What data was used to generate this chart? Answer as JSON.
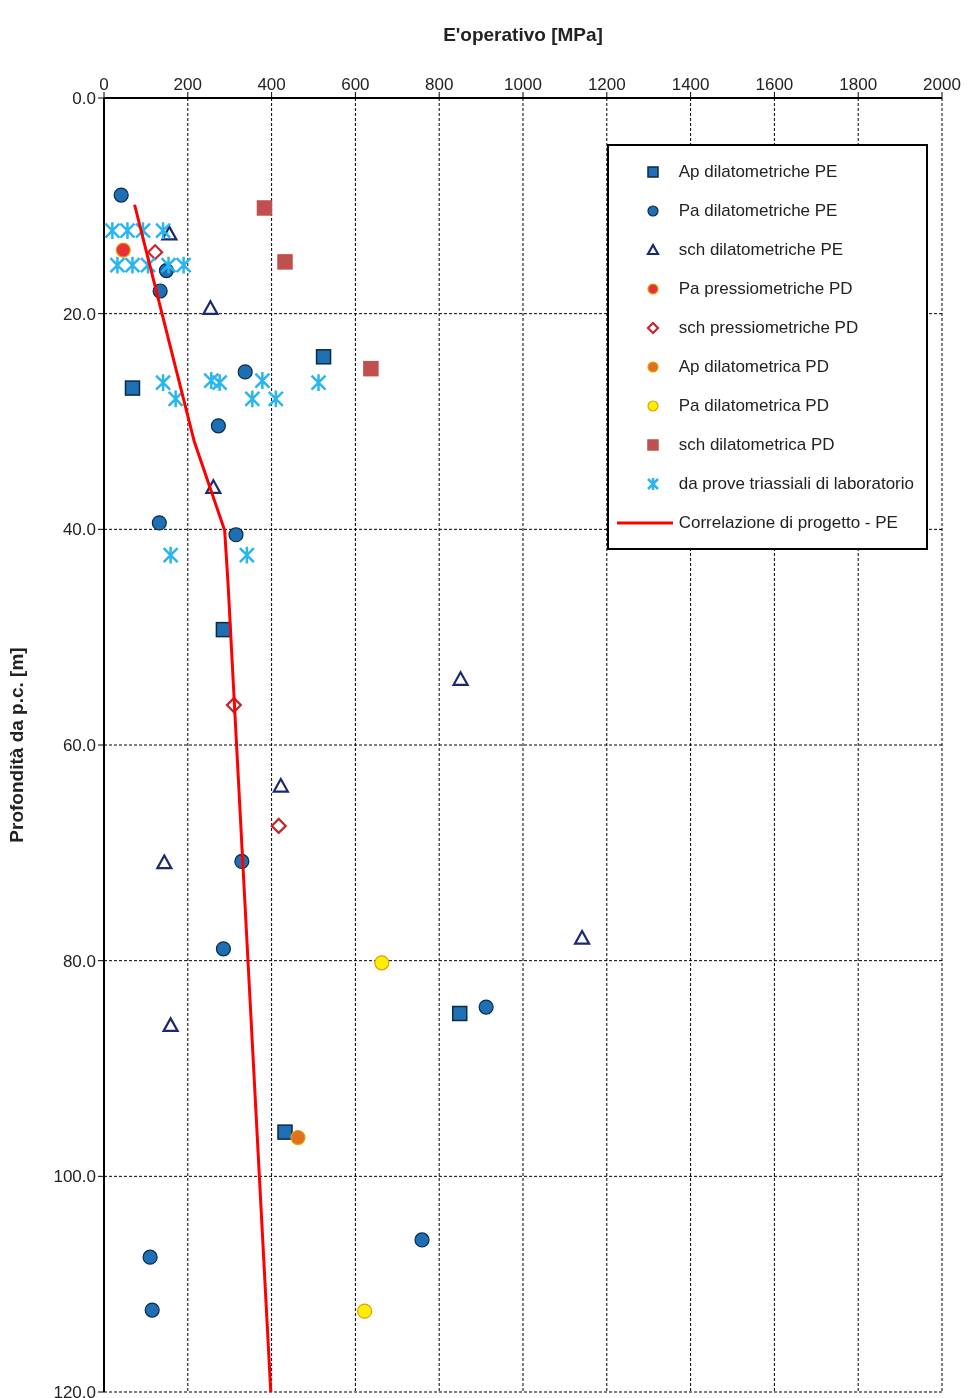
{
  "chart_data": {
    "type": "scatter",
    "xlabel": "E'operativo [MPa]",
    "ylabel": "Profondità da p.c. [m]",
    "xlim": [
      0,
      2000
    ],
    "xticks": [
      0,
      200,
      400,
      600,
      800,
      1000,
      1200,
      1400,
      1600,
      1800,
      2000
    ],
    "ylim": [
      120,
      0
    ],
    "yticks": [
      {
        "value": 0,
        "label": "0.0"
      },
      {
        "value": 20,
        "label": "20.0"
      },
      {
        "value": 40,
        "label": "40.0"
      },
      {
        "value": 60,
        "label": "60.0"
      },
      {
        "value": 80,
        "label": "80.0"
      },
      {
        "value": 100,
        "label": "100.0"
      },
      {
        "value": 120,
        "label": "120.0"
      }
    ],
    "grid": true,
    "legend": "top right",
    "series": [
      {
        "name": "Ap dilatometriche PE",
        "type": "scatter",
        "marker": "square",
        "color": "#1f6fb4",
        "x": [
          68,
          524,
          285,
          849,
          432
        ],
        "values": [
          26.9,
          24.0,
          49.3,
          84.9,
          95.9
        ]
      },
      {
        "name": "Pa dilatometriche PE",
        "type": "scatter",
        "marker": "circle",
        "color": "#1f6fb4",
        "x": [
          41,
          149,
          134,
          337,
          273,
          132,
          315,
          329,
          285,
          912,
          759,
          110,
          115
        ],
        "values": [
          9.0,
          16.0,
          17.9,
          25.4,
          30.4,
          39.4,
          40.5,
          70.8,
          78.9,
          84.3,
          105.9,
          107.5,
          112.4
        ]
      },
      {
        "name": "sch dilatometriche PE",
        "type": "scatter",
        "marker": "triangle",
        "color": "#1a2a6c",
        "x": [
          156,
          254,
          261,
          851,
          422,
          144,
          1141,
          159
        ],
        "values": [
          12.6,
          19.5,
          36.1,
          53.9,
          63.8,
          70.9,
          77.9,
          86.0
        ]
      },
      {
        "name": "Pa pressiometriche PD",
        "type": "scatter",
        "marker": "circle",
        "color": "#e8303a",
        "x": [
          46
        ],
        "values": [
          14.1
        ]
      },
      {
        "name": "sch pressiometriche PD",
        "type": "scatter",
        "marker": "diamond",
        "color": "#c0282e",
        "x": [
          122,
          310,
          417
        ],
        "values": [
          14.3,
          56.3,
          67.5
        ]
      },
      {
        "name": "Ap dilatometrica PD",
        "type": "scatter",
        "marker": "circle",
        "color": "#e07020",
        "x": [
          463
        ],
        "values": [
          96.4
        ]
      },
      {
        "name": "Pa dilatometrica PD",
        "type": "scatter",
        "marker": "circle",
        "color": "#ffee00",
        "x": [
          663,
          622
        ],
        "values": [
          80.2,
          112.5
        ]
      },
      {
        "name": "sch dilatometrica PD",
        "type": "scatter",
        "marker": "square",
        "color": "#c0504d",
        "x": [
          383,
          432,
          637
        ],
        "values": [
          10.2,
          15.2,
          25.1
        ]
      },
      {
        "name": "da prove triassiali di laboratorio",
        "type": "scatter",
        "marker": "cross",
        "color": "#29b6ef",
        "x": [
          20,
          56,
          93,
          141,
          32,
          68,
          105,
          154,
          190,
          141,
          171,
          256,
          276,
          354,
          378,
          410,
          512,
          159,
          341
        ],
        "values": [
          12.3,
          12.3,
          12.3,
          12.3,
          15.5,
          15.5,
          15.5,
          15.5,
          15.5,
          26.4,
          27.9,
          26.2,
          26.4,
          27.9,
          26.2,
          27.9,
          26.4,
          42.4,
          42.4
        ]
      },
      {
        "name": "Correlazione di progetto -  PE",
        "type": "line",
        "marker": "none",
        "color": "#ff0000",
        "x": [
          73,
          215,
          288,
          296,
          398
        ],
        "values": [
          9.9,
          31.8,
          40.1,
          45,
          120
        ]
      }
    ]
  }
}
